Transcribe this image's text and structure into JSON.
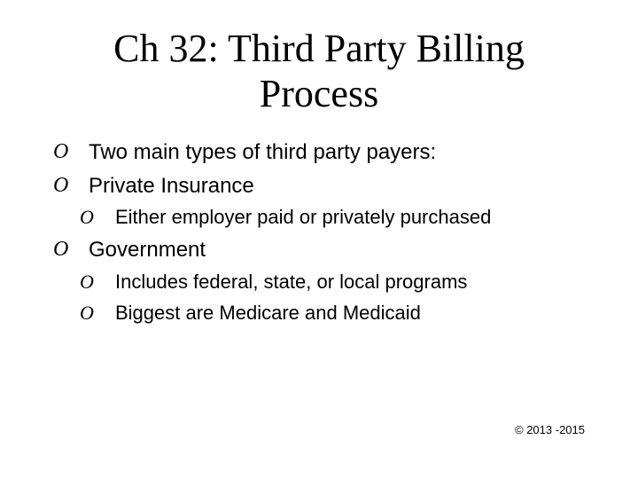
{
  "slide": {
    "title": "Ch 32: Third Party Billing Process",
    "title_fontsize": 44,
    "title_color": "#000000",
    "body_color": "#000000",
    "lvl1_fontsize": 24,
    "lvl2_fontsize": 22,
    "bullet_glyph": "O",
    "background_color": "#ffffff",
    "bullets": [
      {
        "level": 1,
        "text": "Two main types of third party payers:"
      },
      {
        "level": 1,
        "text": "Private Insurance"
      },
      {
        "level": 2,
        "text": "Either employer paid or privately purchased"
      },
      {
        "level": 1,
        "text": "Government"
      },
      {
        "level": 2,
        "text": "Includes federal, state, or local programs"
      },
      {
        "level": 2,
        "text": "Biggest are Medicare and Medicaid"
      }
    ],
    "footer": {
      "text": "© 2013 -2015",
      "fontsize": 13,
      "color": "#000000"
    }
  }
}
